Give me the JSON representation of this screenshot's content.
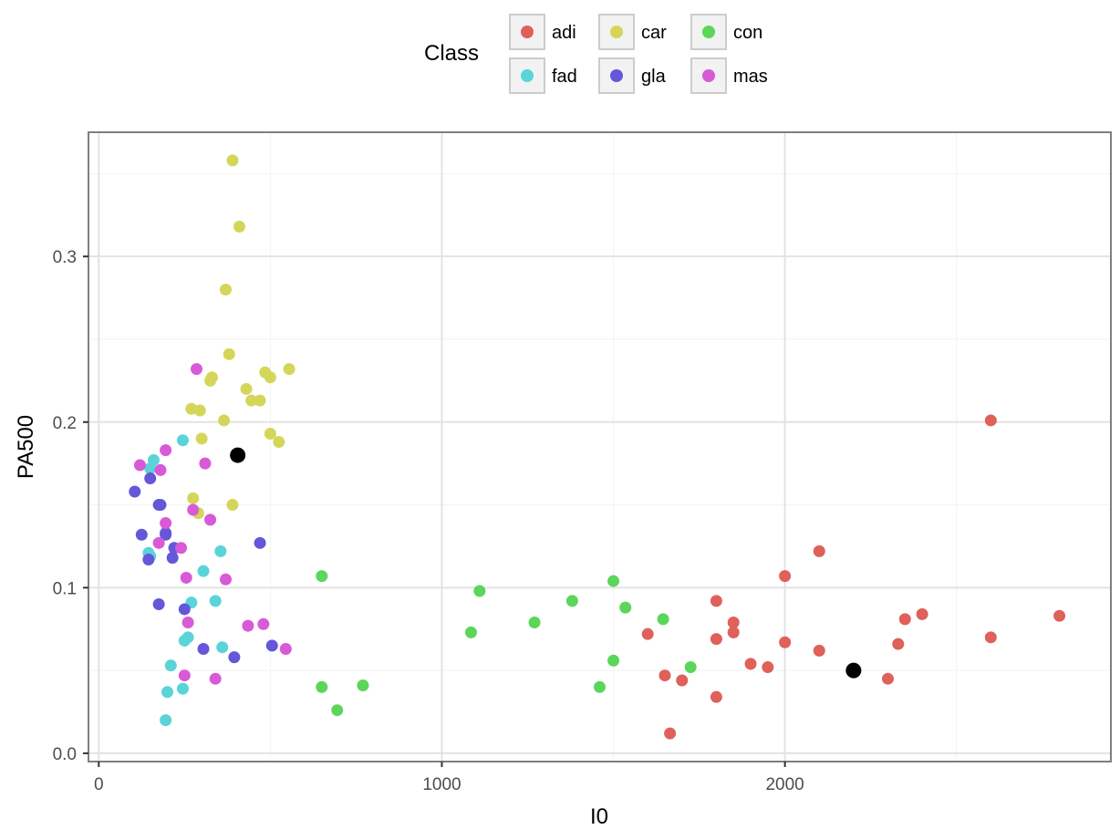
{
  "chart_data": {
    "type": "scatter",
    "xlabel": "I0",
    "ylabel": "PA500",
    "xlim": [
      -30,
      2950
    ],
    "ylim": [
      -0.005,
      0.375
    ],
    "xticks": [
      0,
      1000,
      2000
    ],
    "xtick_labels": [
      "0",
      "1000",
      "2000"
    ],
    "yticks": [
      0.0,
      0.1,
      0.2,
      0.3
    ],
    "ytick_labels": [
      "0.0",
      "0.1",
      "0.2",
      "0.3"
    ],
    "grid": true,
    "legend": {
      "title": "Class",
      "position": "top",
      "entries": [
        {
          "name": "adi",
          "color": "#E0605A"
        },
        {
          "name": "car",
          "color": "#D4D65A"
        },
        {
          "name": "con",
          "color": "#5BD65A"
        },
        {
          "name": "fad",
          "color": "#5AD4D8"
        },
        {
          "name": "gla",
          "color": "#6457D8"
        },
        {
          "name": "mas",
          "color": "#D85AD6"
        }
      ]
    },
    "series": [
      {
        "name": "adi",
        "color": "#E0605A",
        "points": [
          [
            1665,
            0.012
          ],
          [
            1700,
            0.044
          ],
          [
            1650,
            0.047
          ],
          [
            1600,
            0.072
          ],
          [
            1800,
            0.034
          ],
          [
            1800,
            0.069
          ],
          [
            1800,
            0.092
          ],
          [
            1850,
            0.073
          ],
          [
            1850,
            0.079
          ],
          [
            1900,
            0.054
          ],
          [
            1950,
            0.052
          ],
          [
            2000,
            0.067
          ],
          [
            2000,
            0.107
          ],
          [
            2100,
            0.062
          ],
          [
            2100,
            0.122
          ],
          [
            2300,
            0.045
          ],
          [
            2330,
            0.066
          ],
          [
            2350,
            0.081
          ],
          [
            2400,
            0.084
          ],
          [
            2600,
            0.07
          ],
          [
            2600,
            0.201
          ],
          [
            2800,
            0.083
          ]
        ]
      },
      {
        "name": "car",
        "color": "#D4D65A",
        "points": [
          [
            390,
            0.358
          ],
          [
            410,
            0.318
          ],
          [
            370,
            0.28
          ],
          [
            380,
            0.241
          ],
          [
            330,
            0.227
          ],
          [
            325,
            0.225
          ],
          [
            270,
            0.208
          ],
          [
            295,
            0.207
          ],
          [
            365,
            0.201
          ],
          [
            300,
            0.19
          ],
          [
            430,
            0.22
          ],
          [
            445,
            0.213
          ],
          [
            470,
            0.213
          ],
          [
            485,
            0.23
          ],
          [
            500,
            0.227
          ],
          [
            555,
            0.232
          ],
          [
            500,
            0.193
          ],
          [
            525,
            0.188
          ],
          [
            275,
            0.154
          ],
          [
            390,
            0.15
          ],
          [
            290,
            0.145
          ]
        ]
      },
      {
        "name": "con",
        "color": "#5BD65A",
        "points": [
          [
            650,
            0.107
          ],
          [
            650,
            0.04
          ],
          [
            695,
            0.026
          ],
          [
            770,
            0.041
          ],
          [
            1085,
            0.073
          ],
          [
            1110,
            0.098
          ],
          [
            1270,
            0.079
          ],
          [
            1380,
            0.092
          ],
          [
            1460,
            0.04
          ],
          [
            1500,
            0.104
          ],
          [
            1500,
            0.056
          ],
          [
            1535,
            0.088
          ],
          [
            1645,
            0.081
          ],
          [
            1725,
            0.052
          ]
        ]
      },
      {
        "name": "fad",
        "color": "#5AD4D8",
        "points": [
          [
            150,
            0.172
          ],
          [
            160,
            0.177
          ],
          [
            245,
            0.189
          ],
          [
            145,
            0.121
          ],
          [
            150,
            0.119
          ],
          [
            305,
            0.11
          ],
          [
            355,
            0.122
          ],
          [
            270,
            0.091
          ],
          [
            340,
            0.092
          ],
          [
            260,
            0.07
          ],
          [
            250,
            0.068
          ],
          [
            360,
            0.064
          ],
          [
            210,
            0.053
          ],
          [
            200,
            0.037
          ],
          [
            245,
            0.039
          ],
          [
            195,
            0.02
          ]
        ]
      },
      {
        "name": "gla",
        "color": "#6457D8",
        "points": [
          [
            105,
            0.158
          ],
          [
            150,
            0.166
          ],
          [
            180,
            0.15
          ],
          [
            175,
            0.15
          ],
          [
            125,
            0.132
          ],
          [
            195,
            0.133
          ],
          [
            195,
            0.132
          ],
          [
            220,
            0.124
          ],
          [
            215,
            0.118
          ],
          [
            145,
            0.117
          ],
          [
            470,
            0.127
          ],
          [
            175,
            0.09
          ],
          [
            250,
            0.087
          ],
          [
            305,
            0.063
          ],
          [
            395,
            0.058
          ],
          [
            505,
            0.065
          ]
        ]
      },
      {
        "name": "mas",
        "color": "#D85AD6",
        "points": [
          [
            120,
            0.174
          ],
          [
            180,
            0.171
          ],
          [
            195,
            0.183
          ],
          [
            285,
            0.232
          ],
          [
            310,
            0.175
          ],
          [
            275,
            0.147
          ],
          [
            325,
            0.141
          ],
          [
            195,
            0.139
          ],
          [
            240,
            0.124
          ],
          [
            175,
            0.127
          ],
          [
            255,
            0.106
          ],
          [
            370,
            0.105
          ],
          [
            260,
            0.079
          ],
          [
            435,
            0.077
          ],
          [
            480,
            0.078
          ],
          [
            545,
            0.063
          ],
          [
            250,
            0.047
          ],
          [
            340,
            0.045
          ]
        ]
      },
      {
        "name": "",
        "color": "#000000",
        "points": [
          [
            405,
            0.18
          ],
          [
            2200,
            0.05
          ]
        ]
      }
    ]
  }
}
